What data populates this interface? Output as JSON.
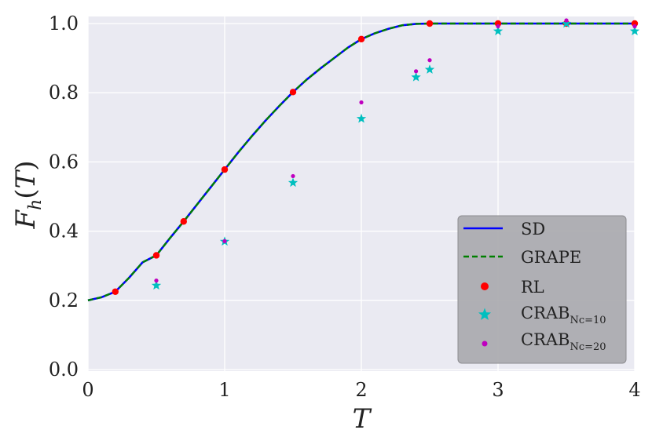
{
  "chart_data": {
    "type": "line",
    "xlabel": "T",
    "ylabel": "F_h(T)",
    "xlim": [
      0,
      4
    ],
    "ylim": [
      0,
      1.02
    ],
    "xticks": [
      0,
      1,
      2,
      3,
      4
    ],
    "yticks": [
      "0.0",
      "0.2",
      "0.4",
      "0.6",
      "0.8",
      "1.0"
    ],
    "grid": true,
    "legend_position": "bottom-right",
    "series": [
      {
        "name": "SD",
        "kind": "line",
        "color": "#0000ff",
        "x": [
          0,
          0.1,
          0.2,
          0.3,
          0.4,
          0.5,
          0.6,
          0.7,
          0.8,
          0.9,
          1.0,
          1.1,
          1.2,
          1.3,
          1.4,
          1.5,
          1.6,
          1.7,
          1.8,
          1.9,
          2.0,
          2.1,
          2.2,
          2.3,
          2.4,
          2.5,
          2.6,
          2.8,
          3.0,
          3.5,
          4.0
        ],
        "y": [
          0.2,
          0.209,
          0.225,
          0.265,
          0.31,
          0.33,
          0.38,
          0.428,
          0.478,
          0.528,
          0.578,
          0.628,
          0.675,
          0.72,
          0.762,
          0.802,
          0.838,
          0.87,
          0.9,
          0.93,
          0.955,
          0.972,
          0.985,
          0.995,
          0.999,
          1.0,
          1.0,
          1.0,
          1.0,
          1.0,
          1.0
        ]
      },
      {
        "name": "GRAPE",
        "kind": "dashed-line",
        "color": "#008000",
        "x": [
          0,
          0.1,
          0.2,
          0.3,
          0.4,
          0.5,
          0.6,
          0.7,
          0.8,
          0.9,
          1.0,
          1.1,
          1.2,
          1.3,
          1.4,
          1.5,
          1.6,
          1.7,
          1.8,
          1.9,
          2.0,
          2.1,
          2.2,
          2.3,
          2.4,
          2.5,
          2.6,
          2.8,
          3.0,
          3.5,
          4.0
        ],
        "y": [
          0.2,
          0.209,
          0.225,
          0.265,
          0.31,
          0.33,
          0.38,
          0.428,
          0.478,
          0.528,
          0.578,
          0.628,
          0.675,
          0.72,
          0.762,
          0.802,
          0.838,
          0.87,
          0.9,
          0.93,
          0.955,
          0.972,
          0.985,
          0.995,
          0.999,
          1.0,
          1.0,
          1.0,
          1.0,
          1.0,
          1.0
        ]
      },
      {
        "name": "RL",
        "kind": "scatter-circle",
        "color": "#ff0000",
        "x": [
          0.2,
          0.5,
          0.7,
          1.0,
          1.5,
          2.0,
          2.5,
          3.0,
          3.5,
          4.0
        ],
        "y": [
          0.225,
          0.33,
          0.428,
          0.578,
          0.802,
          0.955,
          1.0,
          1.0,
          1.0,
          1.0
        ]
      },
      {
        "name": "CRAB",
        "subscript": "Nc=10",
        "kind": "scatter-star",
        "color": "#00bfbf",
        "x": [
          0.5,
          1.0,
          1.5,
          2.0,
          2.4,
          2.5,
          3.0,
          3.5,
          4.0
        ],
        "y": [
          0.243,
          0.37,
          0.54,
          0.725,
          0.845,
          0.867,
          0.978,
          1.0,
          0.978
        ]
      },
      {
        "name": "CRAB",
        "subscript": "Nc=20",
        "kind": "scatter-dot",
        "color": "#bf00bf",
        "x": [
          0.5,
          1.0,
          1.5,
          2.0,
          2.4,
          2.5,
          3.0,
          3.5,
          4.0
        ],
        "y": [
          0.248,
          0.362,
          0.55,
          0.763,
          0.853,
          0.885,
          0.983,
          1.0,
          0.983
        ]
      }
    ]
  }
}
